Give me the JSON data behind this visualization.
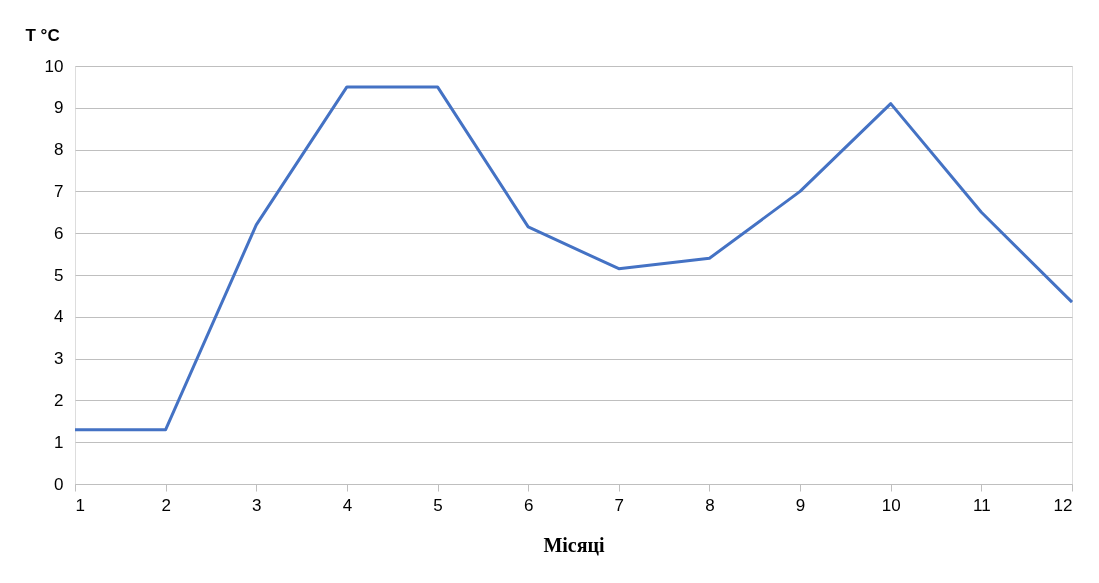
{
  "chart_data": {
    "type": "line",
    "xlabel": "Місяці",
    "ylabel": "T °C",
    "x": [
      1,
      2,
      3,
      4,
      5,
      6,
      7,
      8,
      9,
      10,
      11,
      12
    ],
    "series": [
      {
        "color": "#4472c4",
        "values": [
          1.3,
          1.3,
          6.2,
          9.5,
          9.5,
          6.15,
          5.15,
          5.4,
          7.0,
          9.1,
          6.5,
          4.35
        ]
      }
    ],
    "xlim": [
      1,
      12
    ],
    "xticks": [
      1,
      2,
      3,
      4,
      5,
      6,
      7,
      8,
      9,
      10,
      11,
      12
    ],
    "ylim": [
      0,
      10
    ],
    "yticks": [
      0,
      1,
      2,
      3,
      4,
      5,
      6,
      7,
      8,
      9,
      10
    ],
    "grid": "y",
    "legend": false,
    "marker": "none",
    "line_style": "solid"
  }
}
